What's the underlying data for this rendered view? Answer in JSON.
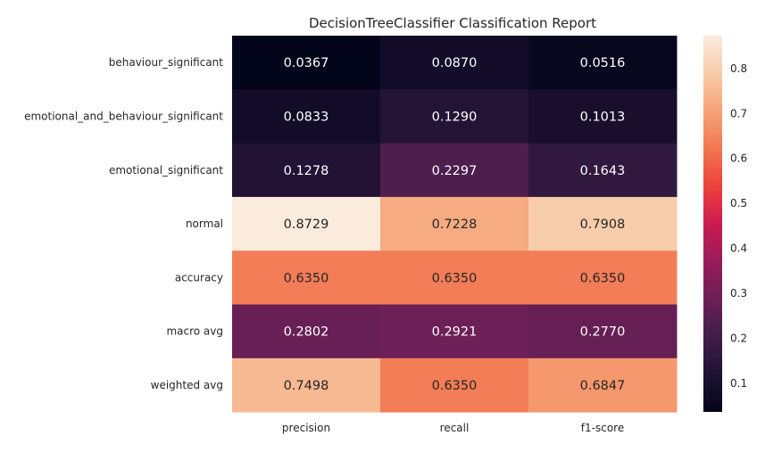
{
  "chart_data": {
    "type": "heatmap",
    "title": "DecisionTreeClassifier Classification Report",
    "xlabel": "",
    "ylabel": "",
    "columns": [
      "precision",
      "recall",
      "f1-score"
    ],
    "rows": [
      "behaviour_significant",
      "emotional_and_behaviour_significant",
      "emotional_significant",
      "normal",
      "accuracy",
      "macro avg",
      "weighted avg"
    ],
    "values": [
      [
        0.0367,
        0.087,
        0.0516
      ],
      [
        0.0833,
        0.129,
        0.1013
      ],
      [
        0.1278,
        0.2297,
        0.1643
      ],
      [
        0.8729,
        0.7228,
        0.7908
      ],
      [
        0.635,
        0.635,
        0.635
      ],
      [
        0.2802,
        0.2921,
        0.277
      ],
      [
        0.7498,
        0.635,
        0.6847
      ]
    ],
    "colormap": "rocket",
    "colorbar": {
      "range": [
        0.0367,
        0.8729
      ],
      "ticks": [
        "0.1",
        "0.2",
        "0.3",
        "0.4",
        "0.5",
        "0.6",
        "0.7",
        "0.8"
      ]
    },
    "grid": false
  }
}
